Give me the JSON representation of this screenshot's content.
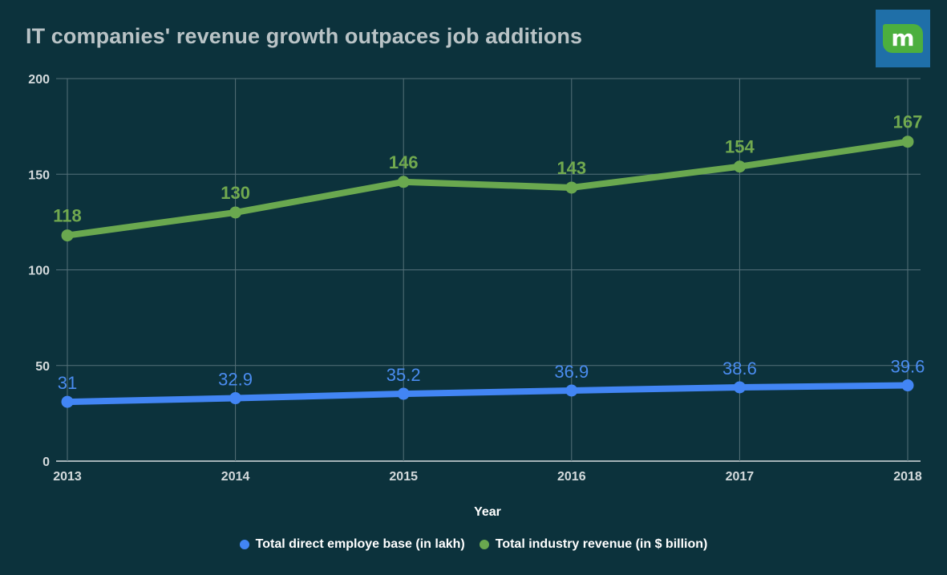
{
  "title": "IT companies' revenue growth outpaces job additions",
  "logo": {
    "letter": "m",
    "color": "#4caf3e",
    "bg": "#1f6fa8"
  },
  "colors": {
    "background": "#0c323c",
    "green": "#6aa84f",
    "blue": "#4285f4",
    "grid": "#557079"
  },
  "chart_data": {
    "type": "line",
    "title": "IT companies' revenue growth outpaces job additions",
    "xlabel": "Year",
    "ylabel": "",
    "x": [
      "2013",
      "2014",
      "2015",
      "2016",
      "2017",
      "2018"
    ],
    "ylim": [
      0,
      200
    ],
    "yticks": [
      0,
      50,
      100,
      150,
      200
    ],
    "grid": true,
    "legend_position": "bottom",
    "series": [
      {
        "name": "Total direct employe base (in lakh)",
        "values": [
          31,
          32.9,
          35.2,
          36.9,
          38.6,
          39.6
        ],
        "labels": [
          "31",
          "32.9",
          "35.2",
          "36.9",
          "38.6",
          "39.6"
        ],
        "color": "#4285f4"
      },
      {
        "name": "Total industry revenue (in $ billion)",
        "values": [
          118,
          130,
          146,
          143,
          154,
          167
        ],
        "labels": [
          "118",
          "130",
          "146",
          "143",
          "154",
          "167"
        ],
        "color": "#6aa84f"
      }
    ]
  }
}
